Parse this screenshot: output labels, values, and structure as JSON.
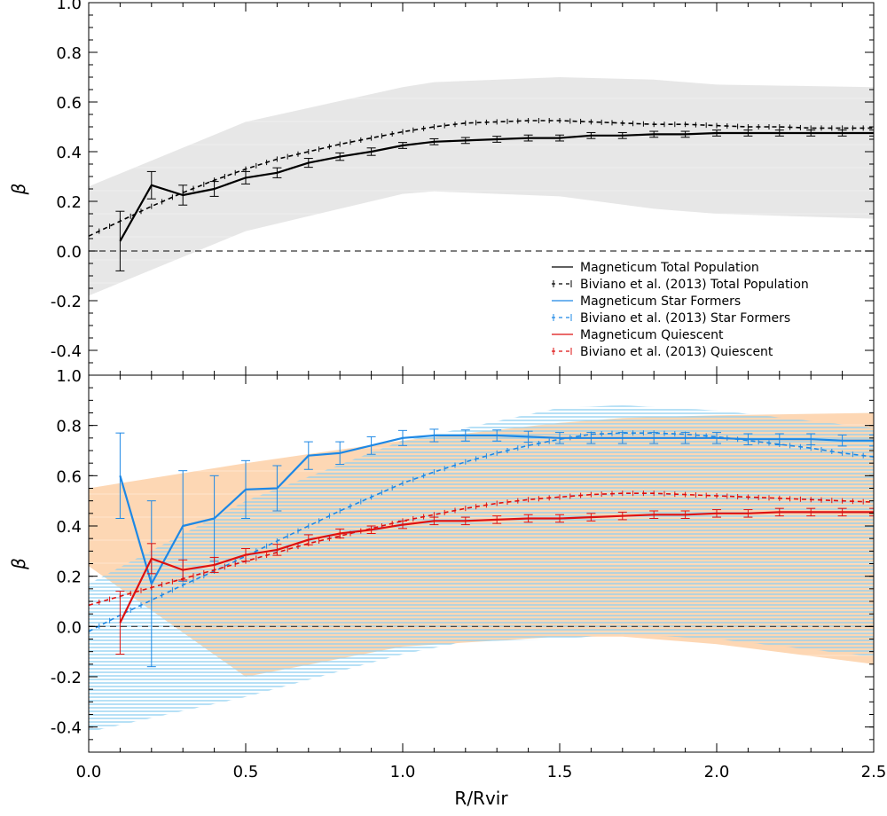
{
  "chart_data": [
    {
      "type": "line",
      "panel": "top",
      "title": "",
      "xlabel": "",
      "ylabel": "β",
      "xlim": [
        0.0,
        2.5
      ],
      "ylim": [
        -0.5,
        1.0
      ],
      "grid": false,
      "yticks": [
        "-0.4",
        "-0.2",
        "0.0",
        "0.2",
        "0.4",
        "0.6",
        "0.8",
        "1.0"
      ],
      "reference_line_y": 0.0,
      "bands": [
        {
          "name": "Magneticum Total Population spread",
          "color": "#e6e6e6",
          "x": [
            0.0,
            0.5,
            1.0,
            1.1,
            1.5,
            1.8,
            2.0,
            2.5
          ],
          "upper": [
            0.26,
            0.52,
            0.66,
            0.68,
            0.7,
            0.69,
            0.67,
            0.66
          ],
          "lower": [
            -0.18,
            0.08,
            0.23,
            0.24,
            0.22,
            0.17,
            0.15,
            0.13
          ]
        }
      ],
      "series": [
        {
          "name": "Magneticum Total Population",
          "color": "#000000",
          "style": "solid",
          "x": [
            0.1,
            0.2,
            0.3,
            0.4,
            0.5,
            0.6,
            0.7,
            0.8,
            0.9,
            1.0,
            1.1,
            1.2,
            1.3,
            1.4,
            1.5,
            1.6,
            1.7,
            1.8,
            1.9,
            2.0,
            2.1,
            2.2,
            2.3,
            2.4,
            2.5
          ],
          "y": [
            0.04,
            0.265,
            0.225,
            0.25,
            0.295,
            0.315,
            0.355,
            0.38,
            0.4,
            0.425,
            0.44,
            0.445,
            0.45,
            0.455,
            0.455,
            0.465,
            0.465,
            0.47,
            0.47,
            0.475,
            0.475,
            0.475,
            0.475,
            0.475,
            0.475
          ],
          "err": [
            0.12,
            0.055,
            0.04,
            0.03,
            0.025,
            0.02,
            0.018,
            0.015,
            0.015,
            0.012,
            0.012,
            0.012,
            0.012,
            0.012,
            0.012,
            0.012,
            0.012,
            0.012,
            0.012,
            0.012,
            0.012,
            0.012,
            0.012,
            0.012,
            0.012
          ]
        },
        {
          "name": "Biviano et al. (2013) Total Population",
          "color": "#000000",
          "style": "dashed",
          "x": [
            0.0,
            0.1,
            0.2,
            0.3,
            0.4,
            0.5,
            0.6,
            0.7,
            0.8,
            0.9,
            1.0,
            1.1,
            1.2,
            1.3,
            1.4,
            1.5,
            1.6,
            1.7,
            1.8,
            1.9,
            2.0,
            2.1,
            2.2,
            2.3,
            2.4,
            2.5
          ],
          "y": [
            0.06,
            0.12,
            0.18,
            0.235,
            0.285,
            0.33,
            0.37,
            0.4,
            0.43,
            0.455,
            0.48,
            0.5,
            0.515,
            0.52,
            0.525,
            0.525,
            0.52,
            0.515,
            0.51,
            0.51,
            0.505,
            0.5,
            0.5,
            0.495,
            0.495,
            0.495
          ]
        }
      ],
      "legend_position": "bottom-right",
      "legend": [
        {
          "label": "Magneticum Total Population",
          "color": "#000000",
          "style": "solid"
        },
        {
          "label": "Biviano et al. (2013) Total Population",
          "color": "#000000",
          "style": "dashed"
        },
        {
          "label": "Magneticum Star Formers",
          "color": "#1e88e5",
          "style": "solid"
        },
        {
          "label": "Biviano et al. (2013) Star Formers",
          "color": "#1e88e5",
          "style": "dashed"
        },
        {
          "label": "Magneticum Quiescent",
          "color": "#dd1111",
          "style": "solid"
        },
        {
          "label": "Biviano et al. (2013) Quiescent",
          "color": "#dd1111",
          "style": "dashed"
        }
      ]
    },
    {
      "type": "line",
      "panel": "bottom",
      "title": "",
      "xlabel": "R/Rvir",
      "ylabel": "β",
      "xlim": [
        0.0,
        2.5
      ],
      "ylim": [
        -0.5,
        1.0
      ],
      "grid": false,
      "xticks": [
        "0.0",
        "0.5",
        "1.0",
        "1.5",
        "2.0",
        "2.5"
      ],
      "yticks": [
        "-0.4",
        "-0.2",
        "0.0",
        "0.2",
        "0.4",
        "0.6",
        "0.8",
        "1.0"
      ],
      "reference_line_y": 0.0,
      "bands": [
        {
          "name": "Magneticum Quiescent spread",
          "color": "#fdd5b0",
          "x": [
            0.0,
            0.5,
            1.0,
            1.5,
            1.7,
            2.0,
            2.5
          ],
          "upper": [
            0.55,
            0.65,
            0.74,
            0.81,
            0.83,
            0.84,
            0.85
          ],
          "lower": [
            0.24,
            -0.2,
            -0.08,
            -0.04,
            -0.04,
            -0.07,
            -0.15
          ]
        },
        {
          "name": "Magneticum Star Formers spread",
          "color": "#c9e8f7",
          "x": [
            0.0,
            0.5,
            1.0,
            1.2,
            1.5,
            1.7,
            2.0,
            2.5
          ],
          "upper": [
            0.17,
            0.5,
            0.74,
            0.79,
            0.87,
            0.88,
            0.86,
            0.79
          ],
          "lower": [
            -0.42,
            -0.28,
            -0.11,
            -0.06,
            -0.05,
            -0.03,
            -0.05,
            -0.12
          ]
        }
      ],
      "series": [
        {
          "name": "Magneticum Star Formers",
          "color": "#1e88e5",
          "style": "solid",
          "x": [
            0.1,
            0.2,
            0.3,
            0.4,
            0.5,
            0.6,
            0.7,
            0.8,
            0.9,
            1.0,
            1.1,
            1.2,
            1.3,
            1.4,
            1.5,
            1.6,
            1.7,
            1.8,
            1.9,
            2.0,
            2.1,
            2.2,
            2.3,
            2.4,
            2.5
          ],
          "y": [
            0.6,
            0.17,
            0.4,
            0.43,
            0.545,
            0.55,
            0.68,
            0.69,
            0.72,
            0.75,
            0.76,
            0.76,
            0.76,
            0.755,
            0.75,
            0.75,
            0.75,
            0.75,
            0.75,
            0.75,
            0.745,
            0.745,
            0.745,
            0.74,
            0.74
          ],
          "err": [
            0.17,
            0.33,
            0.22,
            0.17,
            0.115,
            0.09,
            0.055,
            0.045,
            0.035,
            0.03,
            0.025,
            0.022,
            0.022,
            0.022,
            0.022,
            0.022,
            0.022,
            0.022,
            0.022,
            0.022,
            0.022,
            0.022,
            0.022,
            0.022,
            0.022
          ]
        },
        {
          "name": "Biviano et al. (2013) Star Formers",
          "color": "#1e88e5",
          "style": "dashed",
          "x": [
            0.0,
            0.1,
            0.2,
            0.3,
            0.4,
            0.5,
            0.6,
            0.7,
            0.8,
            0.9,
            1.0,
            1.1,
            1.2,
            1.3,
            1.4,
            1.5,
            1.6,
            1.7,
            1.8,
            1.9,
            2.0,
            2.1,
            2.2,
            2.3,
            2.4,
            2.5
          ],
          "y": [
            -0.02,
            0.045,
            0.105,
            0.165,
            0.22,
            0.28,
            0.34,
            0.4,
            0.46,
            0.515,
            0.57,
            0.615,
            0.655,
            0.69,
            0.72,
            0.745,
            0.765,
            0.77,
            0.77,
            0.765,
            0.755,
            0.74,
            0.725,
            0.71,
            0.69,
            0.675
          ]
        },
        {
          "name": "Magneticum Quiescent",
          "color": "#dd1111",
          "style": "solid",
          "x": [
            0.1,
            0.2,
            0.3,
            0.4,
            0.5,
            0.6,
            0.7,
            0.8,
            0.9,
            1.0,
            1.1,
            1.2,
            1.3,
            1.4,
            1.5,
            1.6,
            1.7,
            1.8,
            1.9,
            2.0,
            2.1,
            2.2,
            2.3,
            2.4,
            2.5
          ],
          "y": [
            0.015,
            0.27,
            0.225,
            0.245,
            0.285,
            0.305,
            0.345,
            0.37,
            0.385,
            0.405,
            0.42,
            0.42,
            0.425,
            0.43,
            0.43,
            0.435,
            0.44,
            0.445,
            0.445,
            0.45,
            0.45,
            0.455,
            0.455,
            0.455,
            0.455
          ],
          "err": [
            0.125,
            0.06,
            0.04,
            0.03,
            0.025,
            0.022,
            0.02,
            0.018,
            0.015,
            0.015,
            0.015,
            0.015,
            0.015,
            0.015,
            0.015,
            0.015,
            0.015,
            0.015,
            0.015,
            0.015,
            0.015,
            0.015,
            0.015,
            0.015,
            0.015
          ]
        },
        {
          "name": "Biviano et al. (2013) Quiescent",
          "color": "#dd1111",
          "style": "dashed",
          "x": [
            0.0,
            0.1,
            0.2,
            0.3,
            0.4,
            0.5,
            0.6,
            0.7,
            0.8,
            0.9,
            1.0,
            1.1,
            1.2,
            1.3,
            1.4,
            1.5,
            1.6,
            1.7,
            1.8,
            1.9,
            2.0,
            2.1,
            2.2,
            2.3,
            2.4,
            2.5
          ],
          "y": [
            0.085,
            0.12,
            0.155,
            0.19,
            0.225,
            0.26,
            0.295,
            0.33,
            0.36,
            0.39,
            0.42,
            0.445,
            0.47,
            0.49,
            0.505,
            0.515,
            0.525,
            0.53,
            0.53,
            0.525,
            0.52,
            0.515,
            0.51,
            0.505,
            0.5,
            0.495
          ]
        }
      ]
    }
  ]
}
